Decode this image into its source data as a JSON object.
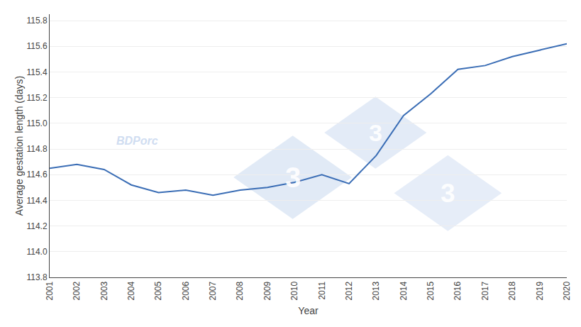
{
  "chart_data": {
    "type": "line",
    "x": [
      2001,
      2002,
      2003,
      2004,
      2005,
      2006,
      2007,
      2008,
      2009,
      2010,
      2011,
      2012,
      2013,
      2014,
      2015,
      2016,
      2017,
      2018,
      2019,
      2020
    ],
    "values": [
      114.65,
      114.68,
      114.64,
      114.52,
      114.46,
      114.48,
      114.44,
      114.48,
      114.5,
      114.54,
      114.6,
      114.53,
      114.75,
      115.06,
      115.23,
      115.42,
      115.45,
      115.52,
      115.57,
      115.62
    ],
    "color": "#3a6db5",
    "xlabel": "Year",
    "ylabel": "Average gestation length (days)",
    "xlim": [
      2001,
      2020
    ],
    "xticks": [
      2001,
      2002,
      2003,
      2004,
      2005,
      2006,
      2007,
      2008,
      2009,
      2010,
      2011,
      2012,
      2013,
      2014,
      2015,
      2016,
      2017,
      2018,
      2019,
      2020
    ],
    "ylim": [
      113.8,
      115.85
    ],
    "yticks": [
      113.8,
      {
        "value": 114.0,
        "label": "114.0"
      },
      114.2,
      114.4,
      114.6,
      114.8,
      {
        "value": 115.0,
        "label": "115.0"
      },
      115.2,
      115.4,
      115.6,
      115.8
    ],
    "grid": true,
    "annotations": [
      {
        "text": "3",
        "color": "#c8d8ef"
      },
      {
        "text": "3",
        "color": "#c8d8ef"
      },
      {
        "text": "3",
        "color": "#c8d8ef"
      },
      {
        "text": "BDPorc",
        "color": "#c8d8ef"
      }
    ]
  }
}
